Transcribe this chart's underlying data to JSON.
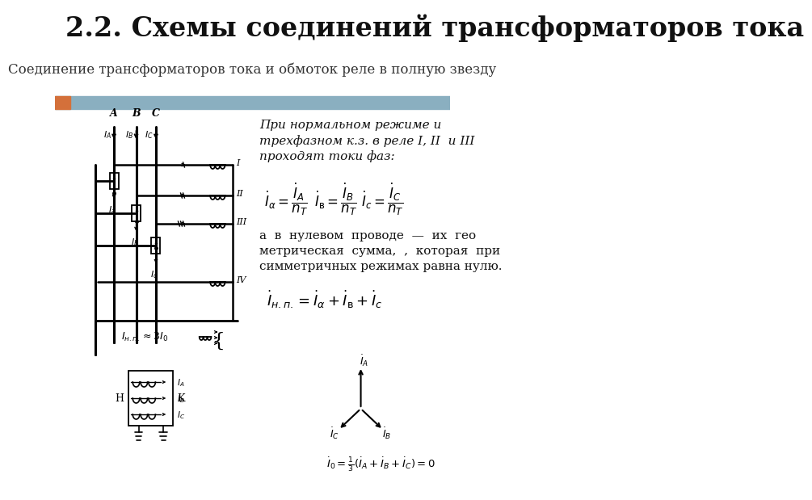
{
  "title": "2.2. Схемы соединений трансформаторов тока",
  "subtitle": "Соединение трансформаторов тока и обмоток реле в полную звезду",
  "title_fontsize": 24,
  "subtitle_fontsize": 12,
  "bg_color": "#ffffff",
  "header_bar_color": "#8aafc0",
  "header_bar_orange": "#d4703a",
  "text_block": [
    "При нормальном режиме и",
    "трехфазном к.з. в реле I, II  и III",
    "проходят токи фаз:"
  ],
  "text_block2": [
    "а  в  нулевом  проводе  —  их  гео",
    "метрическая  сумма,  ,  которая  при",
    "симметричных режимах равна нулю."
  ]
}
